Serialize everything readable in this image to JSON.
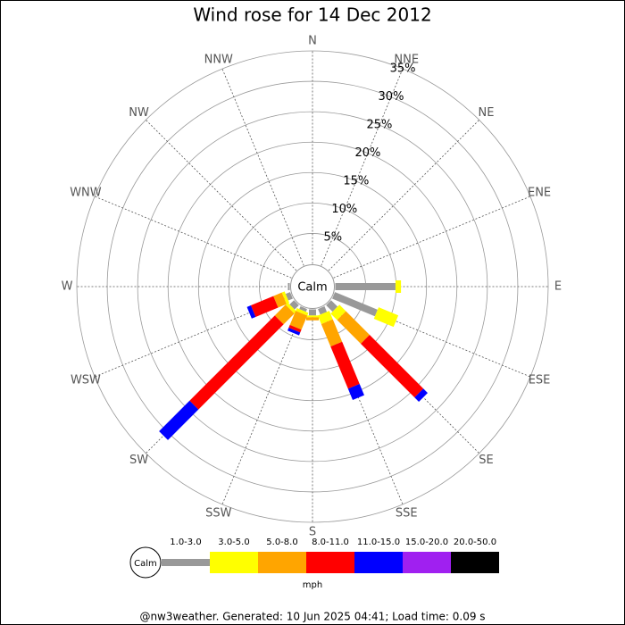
{
  "chart_data": {
    "type": "wind_rose",
    "title": "Wind rose for 14 Dec 2012",
    "categories": [
      "N",
      "NNE",
      "NE",
      "ENE",
      "E",
      "ESE",
      "SE",
      "SSE",
      "S",
      "SSW",
      "SW",
      "WSW",
      "W",
      "WNW",
      "NW",
      "NNW"
    ],
    "calm_label": "Calm",
    "rlim": [
      0,
      35
    ],
    "rticks": [
      {
        "value": 5,
        "label": "5%"
      },
      {
        "value": 10,
        "label": "10%"
      },
      {
        "value": 15,
        "label": "15%"
      },
      {
        "value": 20,
        "label": "20%"
      },
      {
        "value": 25,
        "label": "25%"
      },
      {
        "value": 30,
        "label": "30%"
      },
      {
        "value": 35,
        "label": "35%"
      }
    ],
    "unit": "mph",
    "series": [
      {
        "name": "1.0-3.0",
        "color": "#999999",
        "values": [
          0,
          0,
          0,
          0,
          9.9,
          7.6,
          1.5,
          1.0,
          1.0,
          0.5,
          1.0,
          0.8,
          0.3,
          0,
          0,
          0
        ]
      },
      {
        "name": "3.0-5.0",
        "color": "#ffff00",
        "values": [
          0,
          0,
          0,
          0,
          0.9,
          3.5,
          1.5,
          1.5,
          0.3,
          0.5,
          0.5,
          0.5,
          0,
          0,
          0,
          0
        ]
      },
      {
        "name": "5.0-8.0",
        "color": "#ffa500",
        "values": [
          0,
          0,
          0,
          0,
          0,
          0,
          5.5,
          4.0,
          0.5,
          2.5,
          2.5,
          1.5,
          0,
          0,
          0,
          0
        ]
      },
      {
        "name": "8.0-11.0",
        "color": "#ff0000",
        "values": [
          0,
          0,
          0,
          0,
          0,
          0,
          12.5,
          7.5,
          0,
          0.5,
          19.8,
          4.0,
          0,
          0,
          0,
          0
        ]
      },
      {
        "name": "11.0-15.0",
        "color": "#0000ff",
        "values": [
          0,
          0,
          0,
          0,
          0,
          0,
          1.0,
          2.0,
          0,
          0.5,
          7.1,
          0.7,
          0,
          0,
          0,
          0
        ]
      },
      {
        "name": "15.0-20.0",
        "color": "#a020f0",
        "values": [
          0,
          0,
          0,
          0,
          0,
          0,
          0,
          0,
          0,
          0,
          0,
          0,
          0,
          0,
          0,
          0
        ]
      },
      {
        "name": "20.0-50.0",
        "color": "#000000",
        "values": [
          0,
          0,
          0,
          0,
          0,
          0,
          0,
          0,
          0,
          0,
          0,
          0,
          0,
          0,
          0,
          0
        ]
      }
    ],
    "footer": "@nw3weather. Generated: 10 Jun 2025 04:41; Load time: 0.09 s"
  }
}
